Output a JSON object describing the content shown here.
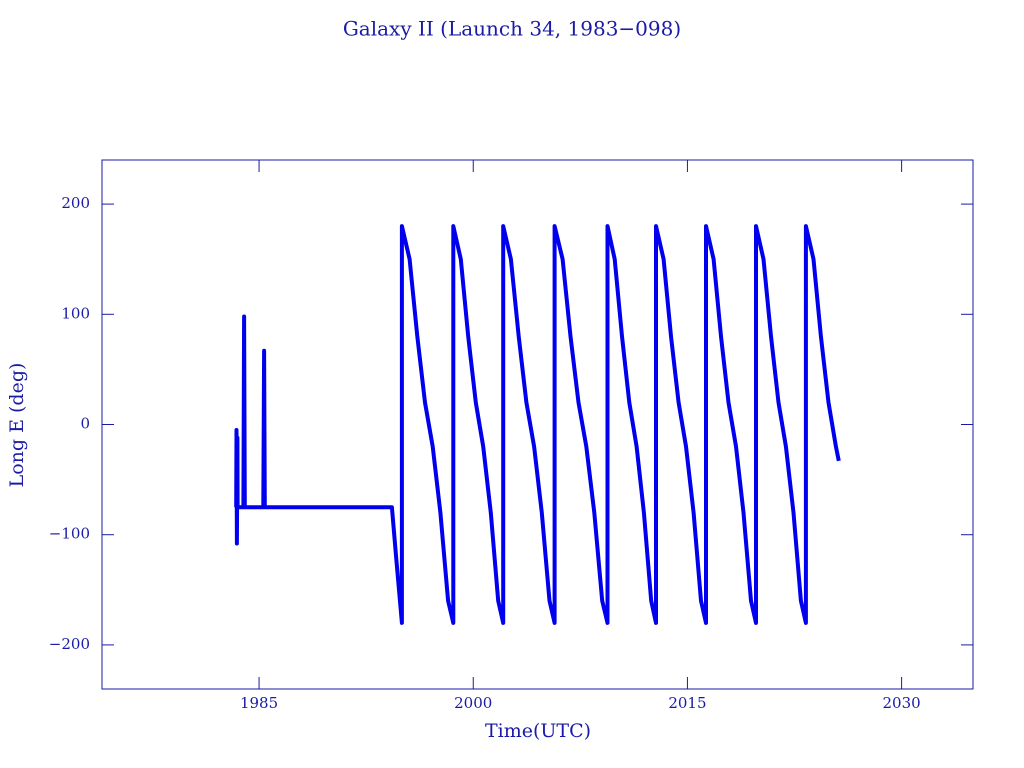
{
  "chart_data": {
    "type": "line",
    "title": "Galaxy II (Launch 34, 1983−098)",
    "x_label": "Time(UTC)",
    "y_label": "Long E (deg)",
    "x": [
      1983.4,
      1983.42,
      1983.45,
      1983.48,
      1983.5,
      1983.9,
      1983.95,
      1984.0,
      1985.3,
      1985.35,
      1985.4,
      1994.3,
      1994.6,
      1995.0,
      1995.0,
      1995.54,
      1996.08,
      1996.62,
      1997.16,
      1997.7,
      1998.24,
      1998.6,
      1998.6,
      1999.13,
      1999.65,
      2000.18,
      2000.7,
      2001.23,
      2001.75,
      2002.1,
      2002.1,
      2002.64,
      2003.18,
      2003.72,
      2004.26,
      2004.8,
      2005.34,
      2005.7,
      2005.7,
      2006.26,
      2006.81,
      2007.37,
      2007.92,
      2008.48,
      2009.03,
      2009.4,
      2009.4,
      2009.91,
      2010.42,
      2010.93,
      2011.44,
      2011.95,
      2012.46,
      2012.8,
      2012.8,
      2013.33,
      2013.85,
      2014.38,
      2014.9,
      2015.43,
      2015.95,
      2016.3,
      2016.3,
      2016.83,
      2017.35,
      2017.88,
      2018.4,
      2018.93,
      2019.45,
      2019.8,
      2019.8,
      2020.33,
      2020.85,
      2021.38,
      2021.9,
      2022.43,
      2022.95,
      2023.3,
      2023.3,
      2023.83,
      2024.35,
      2024.88,
      2025.4,
      2025.6
    ],
    "series": [
      {
        "color": "#0000ee",
        "values": [
          -75,
          -5,
          -108,
          -12,
          -75,
          -75,
          98,
          -75,
          -75,
          67,
          -75,
          -75,
          -120,
          -180,
          180,
          150,
          80,
          20,
          -20,
          -80,
          -160,
          -180,
          180,
          150,
          80,
          20,
          -20,
          -80,
          -160,
          -180,
          180,
          150,
          80,
          20,
          -20,
          -80,
          -160,
          -180,
          180,
          150,
          80,
          20,
          -20,
          -80,
          -160,
          -180,
          180,
          150,
          80,
          20,
          -20,
          -80,
          -160,
          -180,
          180,
          150,
          80,
          20,
          -20,
          -80,
          -160,
          -180,
          180,
          150,
          80,
          20,
          -20,
          -80,
          -160,
          -180,
          180,
          150,
          80,
          20,
          -20,
          -80,
          -160,
          -180,
          180,
          150,
          80,
          20,
          -20,
          -33
        ]
      }
    ],
    "xlim": [
      1974,
      2035
    ],
    "xticks": [
      1985,
      2000,
      2015,
      2030
    ],
    "ylim": [
      -240,
      240
    ],
    "yticks": [
      {
        "value": -200,
        "label": "−200"
      },
      {
        "value": -100,
        "label": "−100"
      },
      0,
      100,
      200
    ]
  }
}
